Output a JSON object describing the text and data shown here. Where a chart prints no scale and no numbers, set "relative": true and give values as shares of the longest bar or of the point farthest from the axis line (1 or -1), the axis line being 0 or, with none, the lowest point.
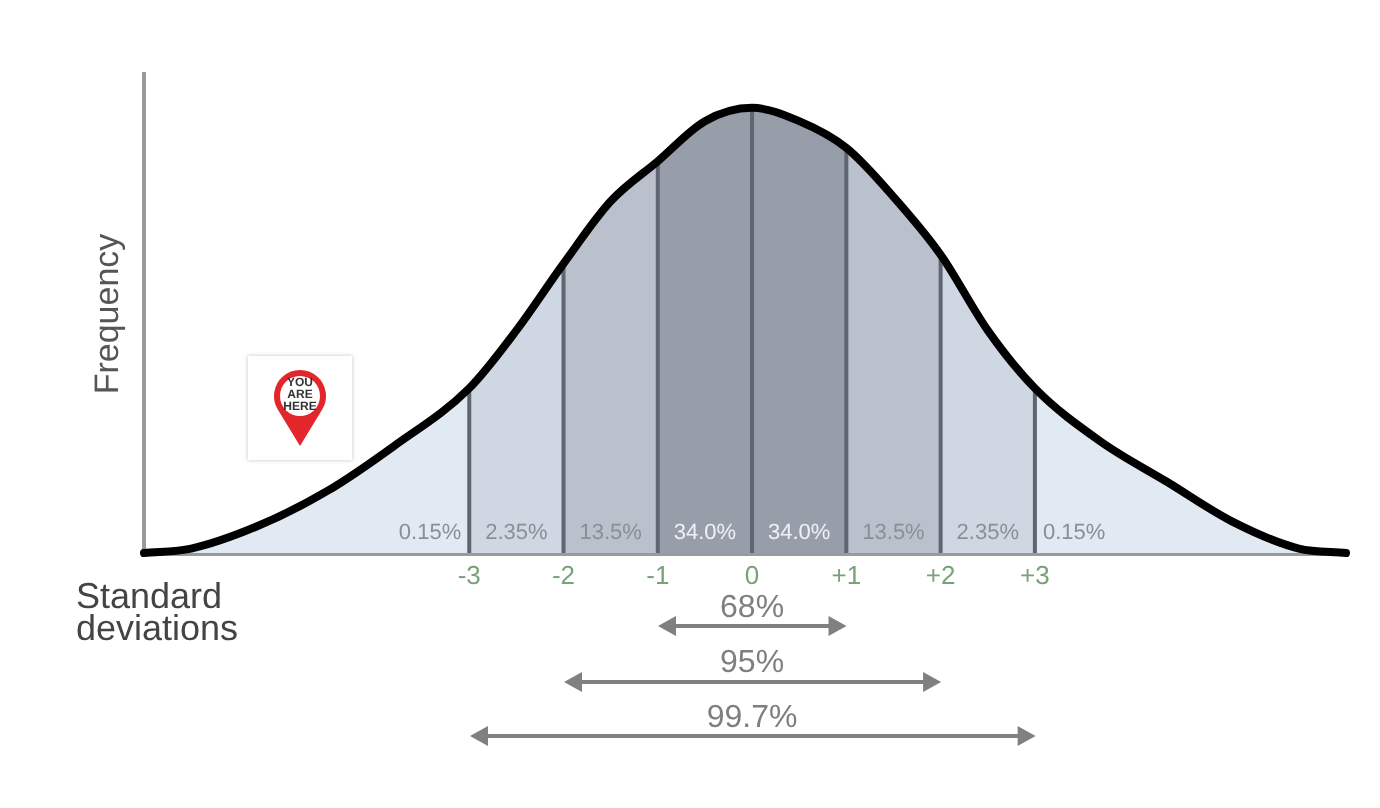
{
  "chart_data": {
    "type": "area",
    "relative": true,
    "grid": "x",
    "xlabel": "Standard deviations",
    "ylabel": "Frequency",
    "xlim": [
      -6.45,
      6.3
    ],
    "xticks": [
      -3,
      -2,
      -1,
      0,
      {
        "value": 1,
        "label": "+1"
      },
      {
        "value": 2,
        "label": "+2"
      },
      {
        "value": 3,
        "label": "+3"
      }
    ],
    "series": [
      {
        "color": "#e1e9f3",
        "x": [
          -6.45,
          -5.95,
          -5.25,
          -4.5,
          -3.8,
          -3
        ],
        "values": [
          0,
          0.01,
          0.06,
          0.14,
          0.24,
          0.37
        ]
      },
      {
        "color": "#cfd7e2",
        "x": [
          -3,
          -2.5,
          -2
        ],
        "values": [
          0.37,
          0.5,
          0.65
        ]
      },
      {
        "color": "#bac1cc",
        "x": [
          -2,
          -1.5,
          -1
        ],
        "values": [
          0.65,
          0.79,
          0.88
        ]
      },
      {
        "color": "#979ea9",
        "x": [
          -1,
          -0.5,
          0
        ],
        "values": [
          0.88,
          0.97,
          1
        ]
      },
      {
        "color": "#979ea9",
        "x": [
          0,
          0.5,
          1
        ],
        "values": [
          1,
          0.97,
          0.91
        ]
      },
      {
        "color": "#bac1cc",
        "x": [
          1,
          1.5,
          2
        ],
        "values": [
          0.91,
          0.8,
          0.67
        ]
      },
      {
        "color": "#cfd7e2",
        "x": [
          2,
          2.5,
          3
        ],
        "values": [
          0.67,
          0.5,
          0.37
        ]
      },
      {
        "color": "#e1e9f3",
        "x": [
          3,
          3.7,
          4.4,
          5.1,
          5.8,
          6.3
        ],
        "values": [
          0.37,
          0.25,
          0.16,
          0.07,
          0.01,
          0
        ]
      },
      {
        "type": "line",
        "color": "#000000",
        "x": [
          -6.45,
          -5.95,
          -5.25,
          -4.5,
          -3.8,
          -3,
          -2.5,
          -2,
          -1.5,
          -1,
          -0.5,
          0,
          0.5,
          1,
          1.5,
          2,
          2.5,
          3,
          3.7,
          4.4,
          5.1,
          5.8,
          6.3
        ],
        "values": [
          0,
          0.01,
          0.06,
          0.14,
          0.24,
          0.37,
          0.5,
          0.65,
          0.79,
          0.88,
          0.97,
          1,
          0.97,
          0.91,
          0.8,
          0.67,
          0.5,
          0.37,
          0.25,
          0.16,
          0.07,
          0.01,
          0
        ]
      }
    ],
    "annotations": [
      "0.15%",
      "2.35%",
      "13.5%",
      "34.0%",
      "34.0%",
      "13.5%",
      "2.35%",
      "0.15%",
      "68%",
      "95%",
      "99.7%",
      "YOU ARE HERE"
    ]
  }
}
